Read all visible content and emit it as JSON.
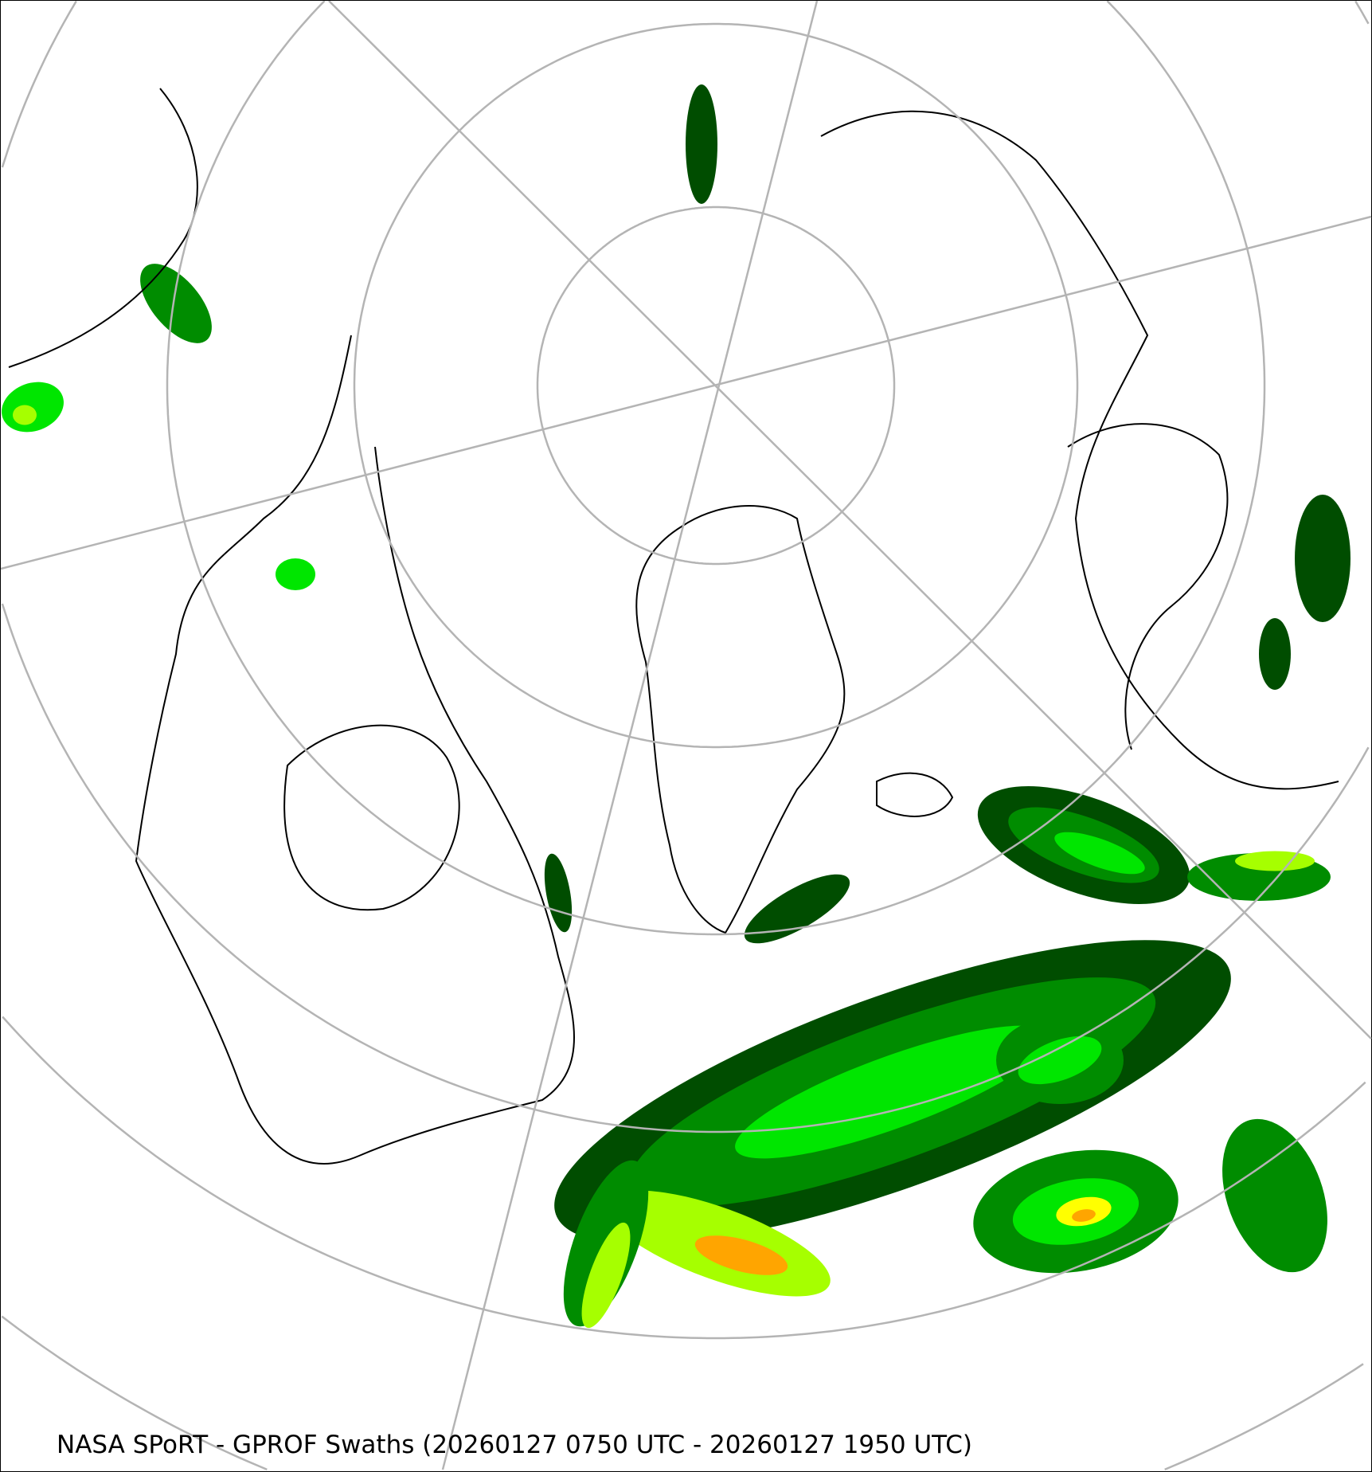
{
  "caption": "NASA SPoRT - GPROF Swaths (20260127 0750 UTC - 20260127 1950 UTC)",
  "projection": "north-polar-stereographic",
  "colors": {
    "graticule": "#b4b4b4",
    "coastline": "#000000",
    "precip_levels": [
      "#004d00",
      "#008c00",
      "#00e600",
      "#a6ff00",
      "#ffff00",
      "#ffa500",
      "#ff3300"
    ]
  }
}
